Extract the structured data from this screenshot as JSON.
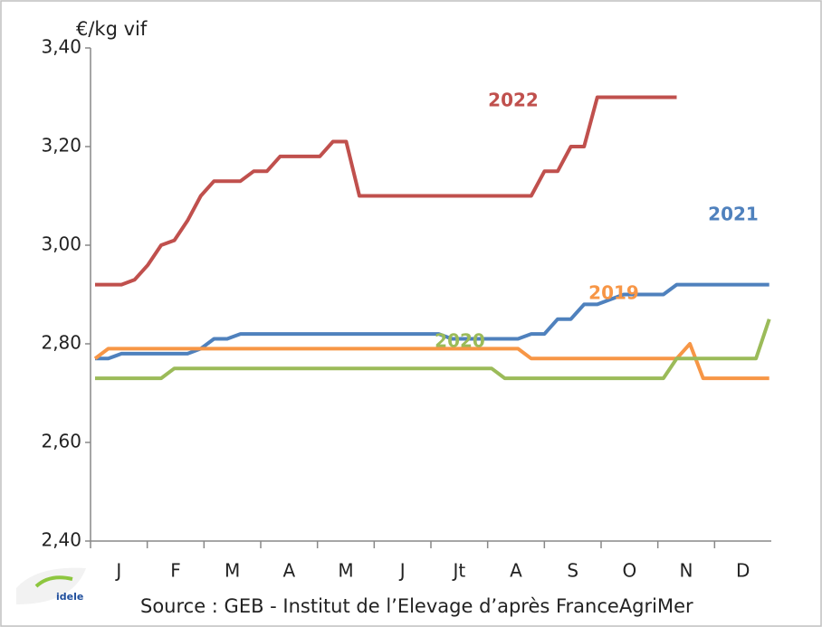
{
  "chart_data": {
    "type": "line",
    "y_axis_label": "€/kg vif",
    "source": "Source : GEB - Institut de l’Elevage d’après FranceAgriMer",
    "logo": "idele",
    "months": [
      "J",
      "F",
      "M",
      "A",
      "M",
      "J",
      "Jt",
      "A",
      "S",
      "O",
      "N",
      "D"
    ],
    "x": [
      1,
      2,
      3,
      4,
      5,
      6,
      7,
      8,
      9,
      10,
      11,
      12,
      13,
      14,
      15,
      16,
      17,
      18,
      19,
      20,
      21,
      22,
      23,
      24,
      25,
      26,
      27,
      28,
      29,
      30,
      31,
      32,
      33,
      34,
      35,
      36,
      37,
      38,
      39,
      40,
      41,
      42,
      43,
      44,
      45,
      46,
      47,
      48,
      49,
      50,
      51,
      52
    ],
    "xlim": [
      0.66,
      52.16
    ],
    "ylim": [
      2.4,
      3.4
    ],
    "yticks": [
      {
        "value": 2.4,
        "label": "2,40"
      },
      {
        "value": 2.6,
        "label": "2,60"
      },
      {
        "value": 2.8,
        "label": "2,80"
      },
      {
        "value": 3.0,
        "label": "3,00"
      },
      {
        "value": 3.2,
        "label": "3,20"
      },
      {
        "value": 3.4,
        "label": "3,40"
      }
    ],
    "series": [
      {
        "name": "2022",
        "color": "#c0504d",
        "values": [
          2.92,
          2.92,
          2.92,
          2.93,
          2.96,
          3.0,
          3.01,
          3.05,
          3.1,
          3.13,
          3.13,
          3.13,
          3.15,
          3.15,
          3.18,
          3.18,
          3.18,
          3.18,
          3.21,
          3.21,
          3.1,
          3.1,
          3.1,
          3.1,
          3.1,
          3.1,
          3.1,
          3.1,
          3.1,
          3.1,
          3.1,
          3.1,
          3.1,
          3.1,
          3.15,
          3.15,
          3.2,
          3.2,
          3.3,
          3.3,
          3.3,
          3.3,
          3.3,
          3.3,
          3.3,
          null,
          null,
          null,
          null,
          null,
          null,
          null
        ]
      },
      {
        "name": "2021",
        "color": "#4f81bd",
        "values": [
          2.77,
          2.77,
          2.78,
          2.78,
          2.78,
          2.78,
          2.78,
          2.78,
          2.79,
          2.81,
          2.81,
          2.82,
          2.82,
          2.82,
          2.82,
          2.82,
          2.82,
          2.82,
          2.82,
          2.82,
          2.82,
          2.82,
          2.82,
          2.82,
          2.82,
          2.82,
          2.82,
          2.81,
          2.81,
          2.81,
          2.81,
          2.81,
          2.81,
          2.82,
          2.82,
          2.85,
          2.85,
          2.88,
          2.88,
          2.89,
          2.9,
          2.9,
          2.9,
          2.9,
          2.92,
          2.92,
          2.92,
          2.92,
          2.92,
          2.92,
          2.92,
          2.92
        ]
      },
      {
        "name": "2019",
        "color": "#f79646",
        "values": [
          2.77,
          2.79,
          2.79,
          2.79,
          2.79,
          2.79,
          2.79,
          2.79,
          2.79,
          2.79,
          2.79,
          2.79,
          2.79,
          2.79,
          2.79,
          2.79,
          2.79,
          2.79,
          2.79,
          2.79,
          2.79,
          2.79,
          2.79,
          2.79,
          2.79,
          2.79,
          2.79,
          2.79,
          2.79,
          2.79,
          2.79,
          2.79,
          2.79,
          2.77,
          2.77,
          2.77,
          2.77,
          2.77,
          2.77,
          2.77,
          2.77,
          2.77,
          2.77,
          2.77,
          2.77,
          2.8,
          2.73,
          2.73,
          2.73,
          2.73,
          2.73,
          2.73
        ]
      },
      {
        "name": "2020",
        "color": "#9bbb59",
        "values": [
          2.73,
          2.73,
          2.73,
          2.73,
          2.73,
          2.73,
          2.75,
          2.75,
          2.75,
          2.75,
          2.75,
          2.75,
          2.75,
          2.75,
          2.75,
          2.75,
          2.75,
          2.75,
          2.75,
          2.75,
          2.75,
          2.75,
          2.75,
          2.75,
          2.75,
          2.75,
          2.75,
          2.75,
          2.75,
          2.75,
          2.75,
          2.73,
          2.73,
          2.73,
          2.73,
          2.73,
          2.73,
          2.73,
          2.73,
          2.73,
          2.73,
          2.73,
          2.73,
          2.73,
          2.77,
          2.77,
          2.77,
          2.77,
          2.77,
          2.77,
          2.77,
          2.85
        ]
      }
    ]
  }
}
